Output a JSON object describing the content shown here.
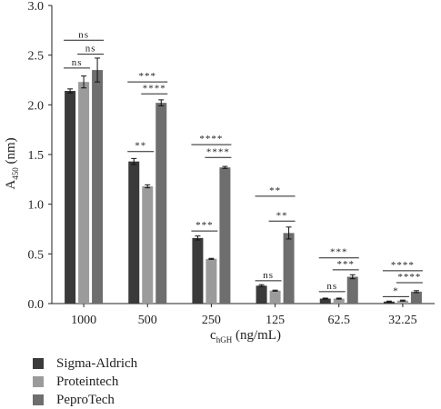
{
  "chart_data": {
    "type": "bar",
    "title": "",
    "xlabel_main": "c",
    "xlabel_sub": "hGH",
    "xlabel_unit": " (ng/mL)",
    "ylabel_main": "A",
    "ylabel_sub": "450",
    "ylabel_unit": " (nm)",
    "ylim": [
      0,
      3.0
    ],
    "yticks": [
      "0.0",
      "0.5",
      "1.0",
      "1.5",
      "2.0",
      "2.5",
      "3.0"
    ],
    "categories": [
      "1000",
      "500",
      "250",
      "125",
      "62.5",
      "32.25"
    ],
    "series": [
      {
        "name": "Sigma-Aldrich",
        "color": "#3a3a3a",
        "values": [
          2.14,
          1.43,
          0.66,
          0.18,
          0.05,
          0.02
        ],
        "errors": [
          0.02,
          0.03,
          0.02,
          0.01,
          0.005,
          0.005
        ]
      },
      {
        "name": "Proteintech",
        "color": "#9b9b9b",
        "values": [
          2.23,
          1.18,
          0.45,
          0.13,
          0.05,
          0.03
        ],
        "errors": [
          0.06,
          0.015,
          0.005,
          0.005,
          0.005,
          0.005
        ]
      },
      {
        "name": "PeproTech",
        "color": "#6e6e6e",
        "values": [
          2.35,
          2.02,
          1.37,
          0.71,
          0.27,
          0.12
        ],
        "errors": [
          0.12,
          0.03,
          0.01,
          0.06,
          0.02,
          0.01
        ]
      }
    ],
    "significance": [
      {
        "group": 0,
        "from": 0,
        "to": 1,
        "y": 2.37,
        "label": "ns"
      },
      {
        "group": 0,
        "from": 0,
        "to": 2,
        "y": 2.65,
        "label": "ns"
      },
      {
        "group": 0,
        "from": 1,
        "to": 2,
        "y": 2.51,
        "label": "ns"
      },
      {
        "group": 1,
        "from": 0,
        "to": 1,
        "y": 1.53,
        "label": "**"
      },
      {
        "group": 1,
        "from": 0,
        "to": 2,
        "y": 2.23,
        "label": "***"
      },
      {
        "group": 1,
        "from": 1,
        "to": 2,
        "y": 2.11,
        "label": "****"
      },
      {
        "group": 2,
        "from": 0,
        "to": 1,
        "y": 0.73,
        "label": "***"
      },
      {
        "group": 2,
        "from": 0,
        "to": 2,
        "y": 1.6,
        "label": "****"
      },
      {
        "group": 2,
        "from": 1,
        "to": 2,
        "y": 1.47,
        "label": "****"
      },
      {
        "group": 3,
        "from": 0,
        "to": 1,
        "y": 0.23,
        "label": "ns"
      },
      {
        "group": 3,
        "from": 0,
        "to": 2,
        "y": 1.08,
        "label": "**"
      },
      {
        "group": 3,
        "from": 1,
        "to": 2,
        "y": 0.83,
        "label": "**"
      },
      {
        "group": 4,
        "from": 0,
        "to": 1,
        "y": 0.12,
        "label": "ns"
      },
      {
        "group": 4,
        "from": 0,
        "to": 2,
        "y": 0.46,
        "label": "***"
      },
      {
        "group": 4,
        "from": 1,
        "to": 2,
        "y": 0.34,
        "label": "***"
      },
      {
        "group": 5,
        "from": 0,
        "to": 1,
        "y": 0.07,
        "label": "*"
      },
      {
        "group": 5,
        "from": 0,
        "to": 2,
        "y": 0.33,
        "label": "****"
      },
      {
        "group": 5,
        "from": 1,
        "to": 2,
        "y": 0.21,
        "label": "****"
      }
    ],
    "grid": false,
    "legend_position": "bottom-left"
  }
}
